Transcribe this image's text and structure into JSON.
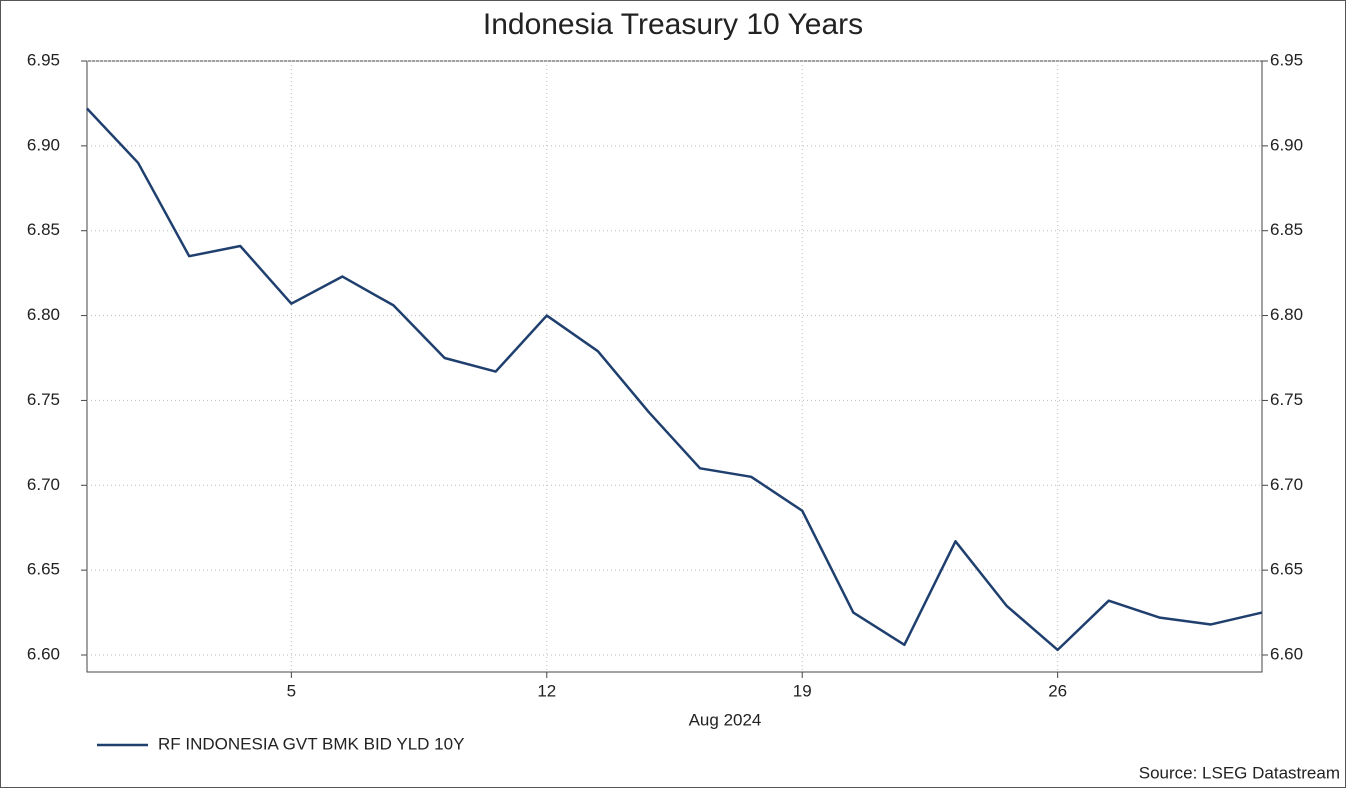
{
  "chart_data": {
    "type": "line",
    "title": "Indonesia Treasury 10 Years",
    "x_label": "Aug 2024",
    "source": "Source: LSEG Datastream",
    "categories": [
      null,
      null,
      null,
      null,
      "5",
      null,
      null,
      null,
      null,
      "12",
      null,
      null,
      null,
      null,
      "19",
      null,
      null,
      null,
      null,
      "26",
      null,
      null,
      null,
      null
    ],
    "series": [
      {
        "name": "RF INDONESIA GVT BMK BID YLD 10Y",
        "color": "#1f3f6e",
        "values": [
          6.922,
          6.89,
          6.835,
          6.841,
          6.807,
          6.823,
          6.806,
          6.775,
          6.767,
          6.8,
          6.779,
          6.743,
          6.71,
          6.705,
          6.685,
          6.625,
          6.606,
          6.667,
          6.629,
          6.603,
          6.632,
          6.622,
          6.618,
          6.625
        ]
      }
    ],
    "ylim": [
      6.6,
      6.95
    ],
    "yticks": [
      {
        "value": 6.6,
        "label": "6.60"
      },
      6.65,
      {
        "value": 6.7,
        "label": "6.70"
      },
      6.75,
      {
        "value": 6.8,
        "label": "6.80"
      },
      6.85,
      {
        "value": 6.9,
        "label": "6.90"
      },
      6.95
    ],
    "y2lim": [
      6.6,
      6.95
    ],
    "y2ticks": [
      {
        "value": 6.6,
        "label": "6.60"
      },
      6.65,
      {
        "value": 6.7,
        "label": "6.70"
      },
      6.75,
      {
        "value": 6.8,
        "label": "6.80"
      },
      6.85,
      {
        "value": 6.9,
        "label": "6.90"
      },
      6.95
    ],
    "grid": true,
    "legend": "bottom-left"
  }
}
